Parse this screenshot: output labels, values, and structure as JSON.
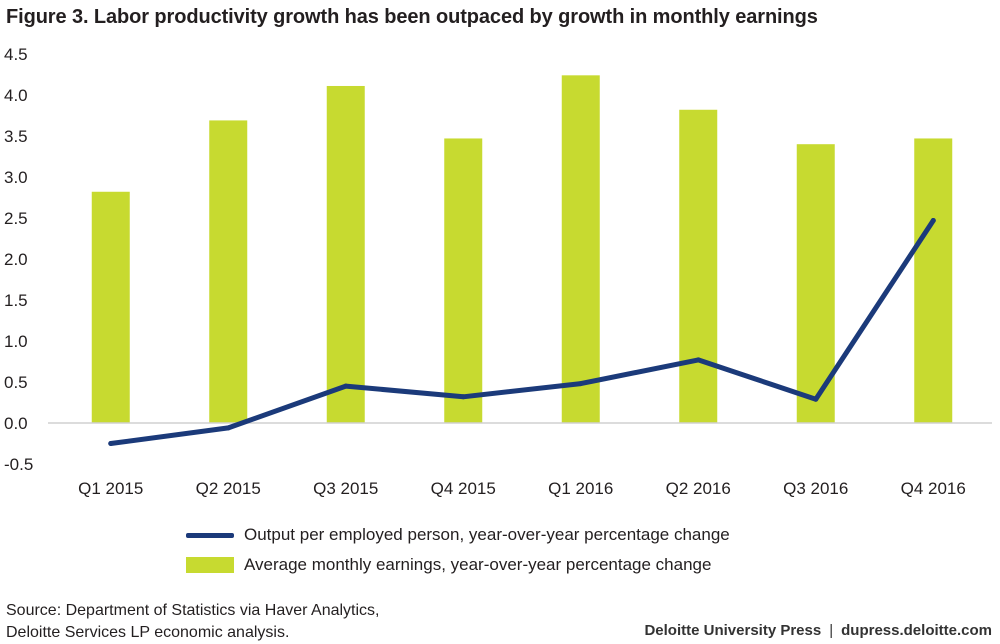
{
  "title": "Figure 3. Labor productivity growth has been outpaced by growth in monthly earnings",
  "chart_data": {
    "type": "bar",
    "categories": [
      "Q1 2015",
      "Q2 2015",
      "Q3 2015",
      "Q4 2015",
      "Q1 2016",
      "Q2 2016",
      "Q3 2016",
      "Q4 2016"
    ],
    "series": [
      {
        "name": "Average monthly earnings, year-over-year percentage change",
        "type": "bar",
        "color": "#c7da30",
        "values": [
          2.82,
          3.69,
          4.11,
          3.47,
          4.24,
          3.82,
          3.4,
          3.47
        ]
      },
      {
        "name": "Output per employed person, year-over-year percentage change",
        "type": "line",
        "color": "#1b3a7a",
        "values": [
          -0.25,
          -0.06,
          0.45,
          0.32,
          0.48,
          0.77,
          0.29,
          2.47
        ]
      }
    ],
    "yticks": [
      "4.5",
      "4.0",
      "3.5",
      "3.0",
      "2.5",
      "2.0",
      "1.5",
      "1.0",
      "0.5",
      "0.0",
      "-0.5"
    ],
    "ylim": [
      -0.5,
      4.5
    ],
    "grid": false,
    "legend_position": "bottom"
  },
  "legend": {
    "line_label": "Output per employed person, year-over-year percentage change",
    "bar_label": "Average monthly earnings, year-over-year percentage change"
  },
  "source": {
    "line1": "Source: Department of Statistics via Haver Analytics,",
    "line2": "Deloitte Services LP economic analysis."
  },
  "footer": {
    "publisher": "Deloitte University Press",
    "separator": "|",
    "url": "dupress.deloitte.com"
  }
}
